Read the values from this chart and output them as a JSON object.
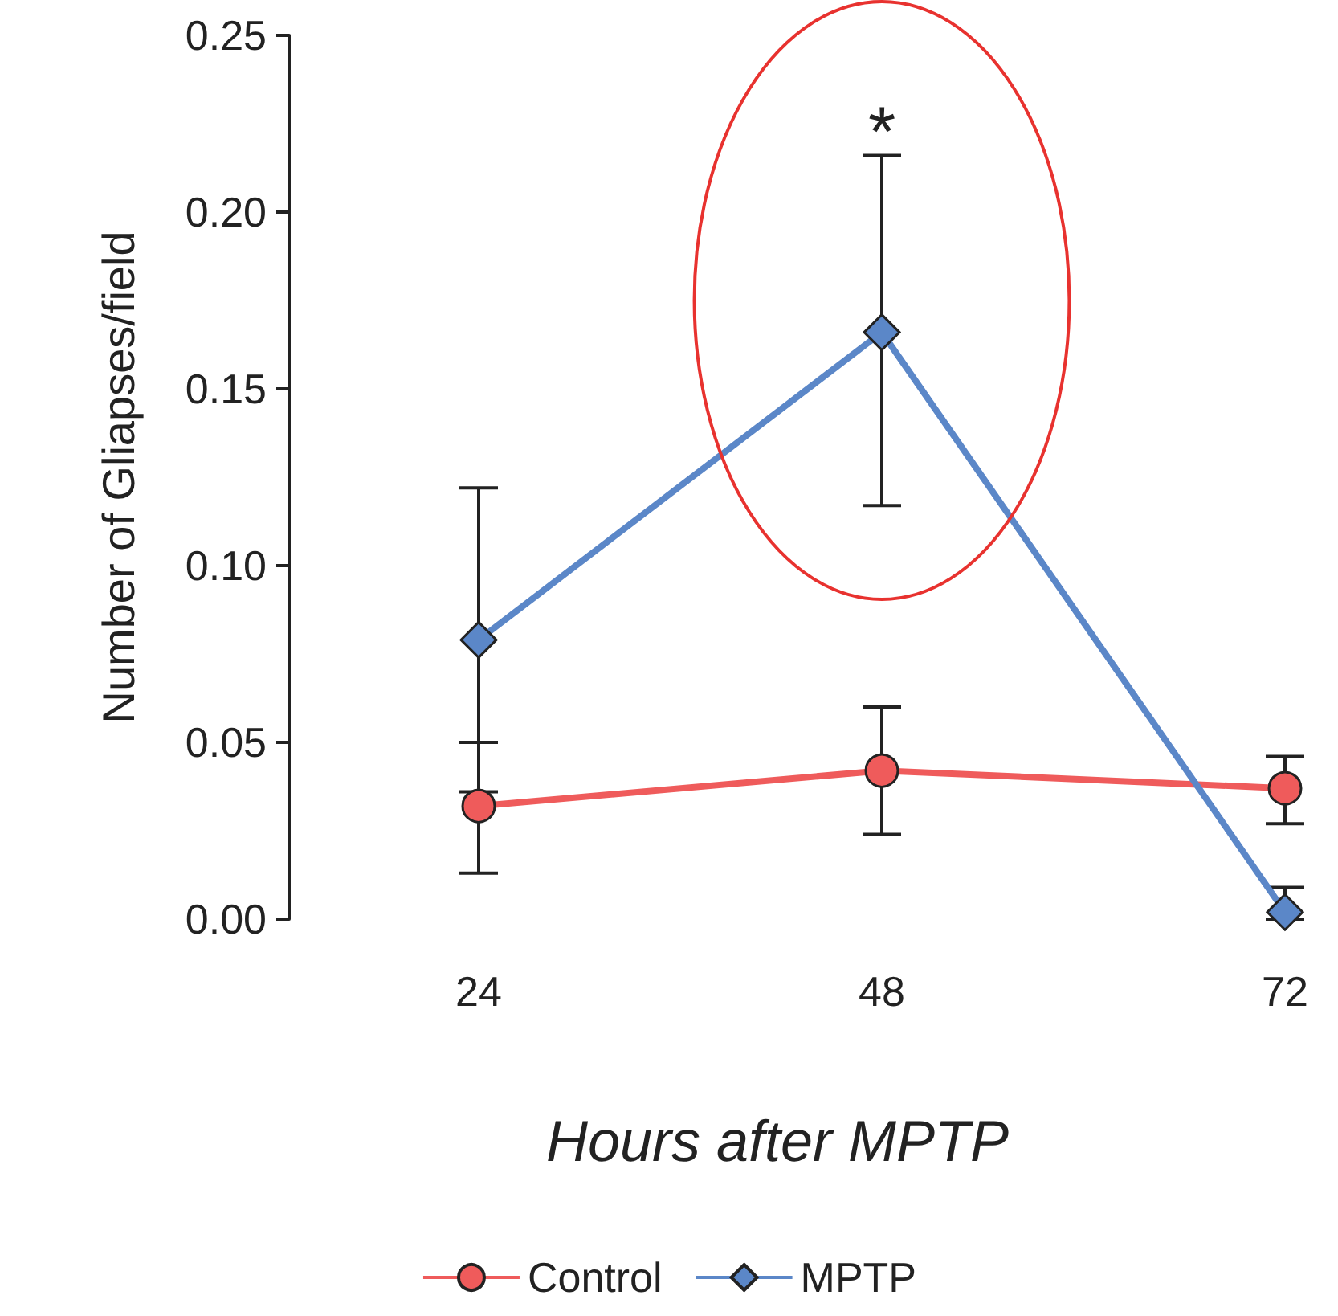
{
  "chart_data": {
    "type": "line",
    "xlabel": "Hours after MPTP",
    "ylabel": "Number of Gliapses/field",
    "categories": [
      "24",
      "48",
      "72"
    ],
    "series": [
      {
        "name": "Control",
        "color": "#ef5b5b",
        "marker": "circle",
        "values": [
          0.032,
          0.042,
          0.037
        ],
        "errors": [
          [
            0.013,
            0.05
          ],
          [
            0.024,
            0.06
          ],
          [
            0.027,
            0.046
          ]
        ]
      },
      {
        "name": "MPTP",
        "color": "#5b87c8",
        "marker": "diamond",
        "values": [
          0.079,
          0.166,
          0.002
        ],
        "errors": [
          [
            0.036,
            0.122
          ],
          [
            0.117,
            0.216
          ],
          [
            0,
            0.009
          ]
        ]
      }
    ],
    "ylim": [
      0,
      0.25
    ],
    "yticks": [
      {
        "value": 0,
        "label": "0.00"
      },
      0.05,
      {
        "value": 0.1,
        "label": "0.10"
      },
      0.15,
      {
        "value": 0.2,
        "label": "0.20"
      },
      0.25
    ],
    "grid": false,
    "legend": "bottom",
    "annotations": [
      "*"
    ]
  }
}
